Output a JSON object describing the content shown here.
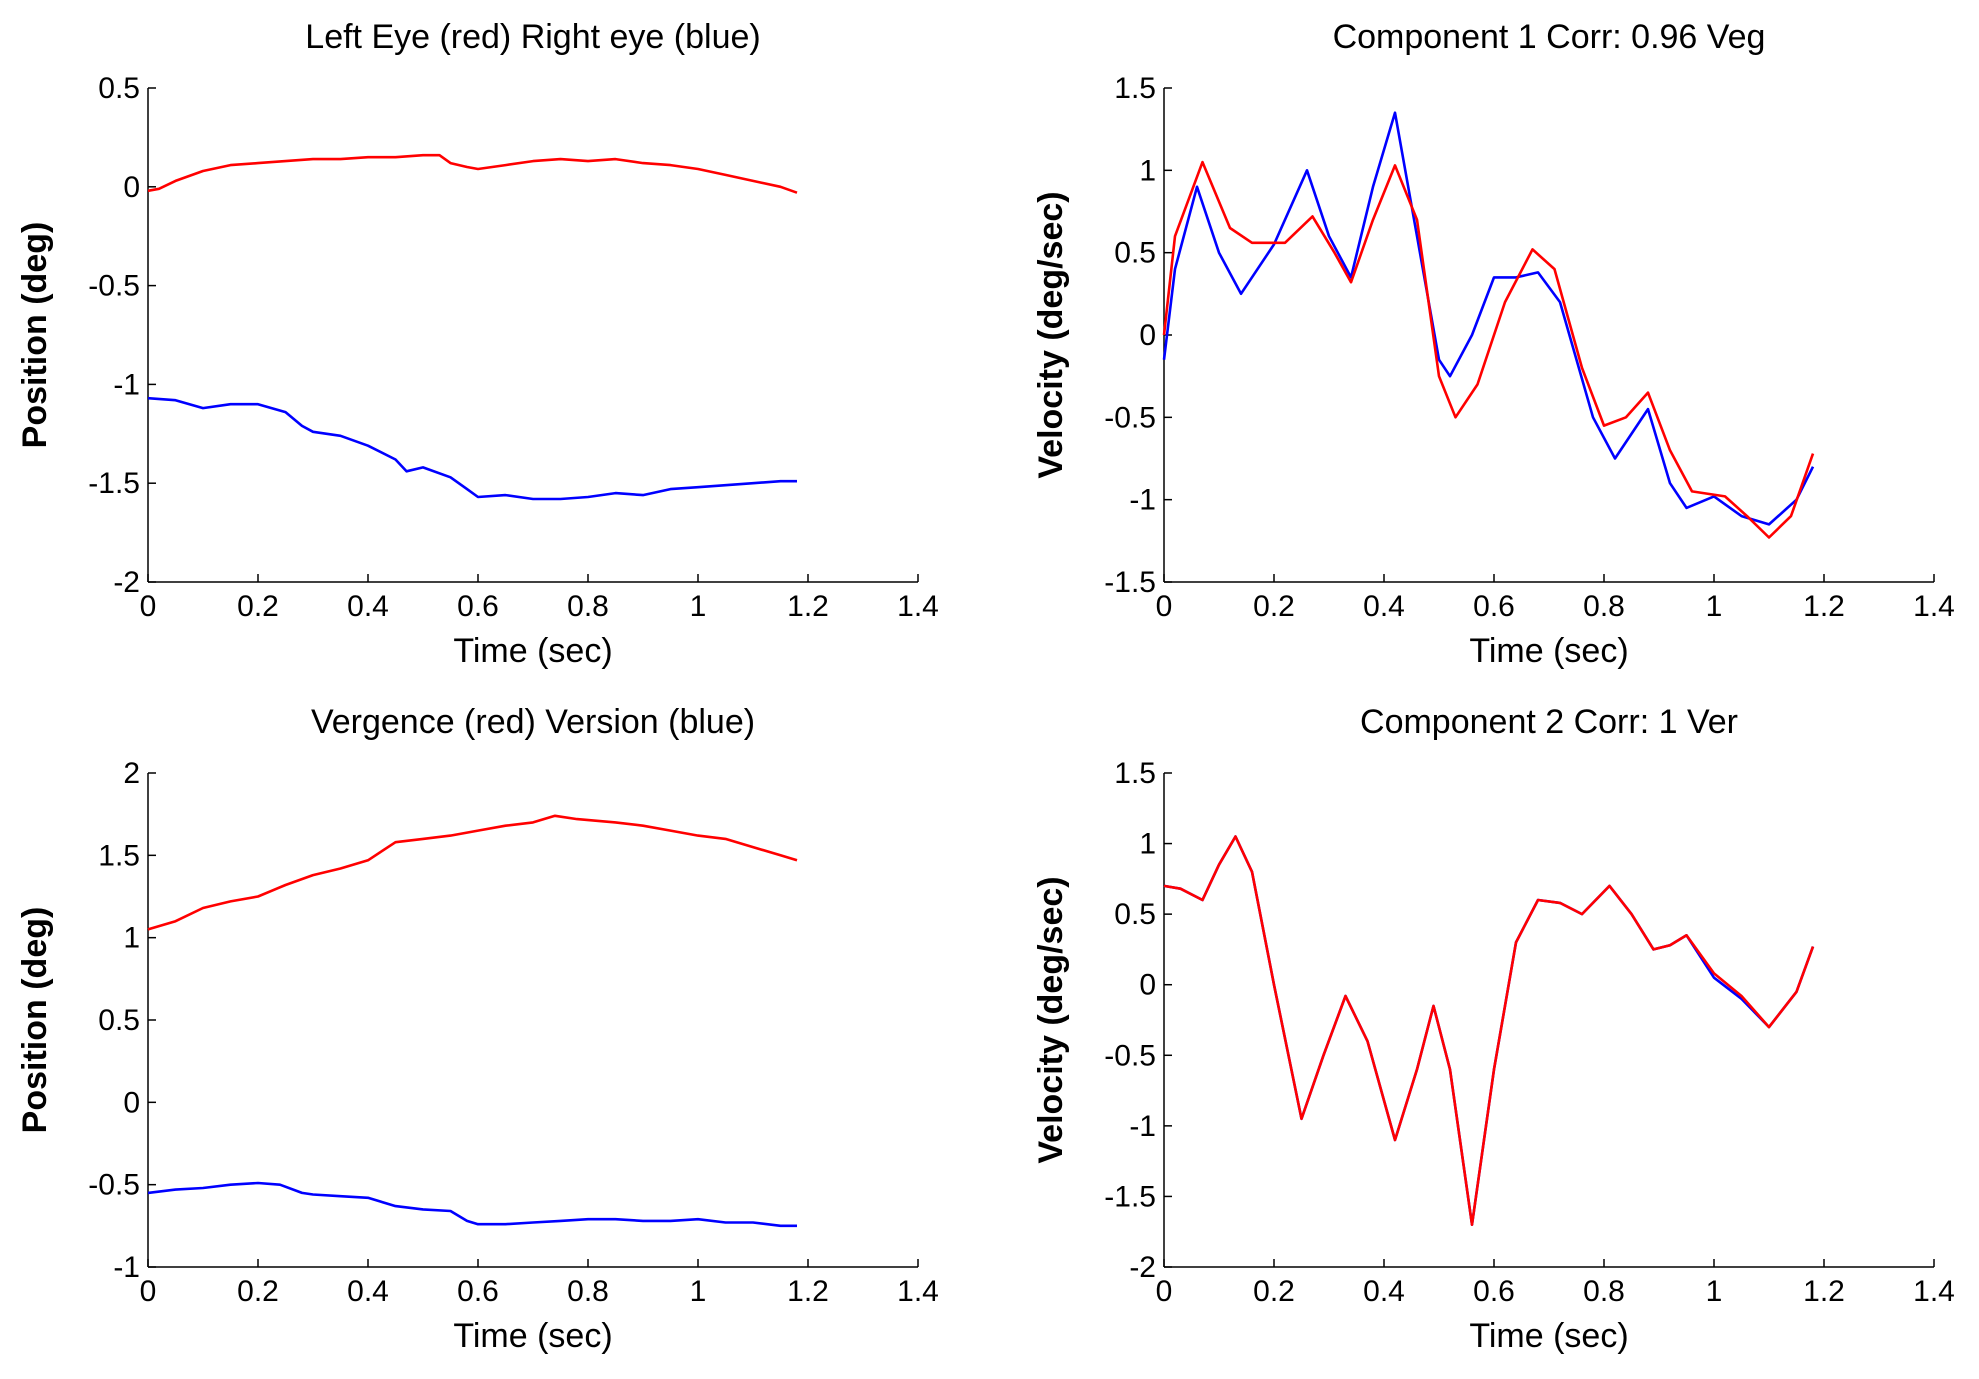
{
  "chart_data": [
    {
      "id": "tl",
      "type": "line",
      "title": "Left Eye (red) Right eye (blue)",
      "xlabel": "Time (sec)",
      "ylabel": "Position (deg)",
      "xlim": [
        0,
        1.4
      ],
      "ylim": [
        -2,
        0.5
      ],
      "xticks": [
        0,
        0.2,
        0.4,
        0.6,
        0.8,
        1,
        1.2,
        1.4
      ],
      "xtick_labels": [
        "0",
        "0.2",
        "0.4",
        "0.6",
        "0.8",
        "1",
        "1.2",
        "1.4"
      ],
      "yticks": [
        0.5,
        0,
        -0.5,
        -1,
        -1.5,
        -2
      ],
      "ytick_labels": [
        "0.5",
        "0",
        "-0.5",
        "-1",
        "-1.5",
        "-2"
      ],
      "series": [
        {
          "name": "Left Eye",
          "color": "#ff0000",
          "x": [
            0,
            0.02,
            0.05,
            0.1,
            0.15,
            0.2,
            0.25,
            0.3,
            0.35,
            0.4,
            0.45,
            0.5,
            0.53,
            0.55,
            0.58,
            0.6,
            0.65,
            0.7,
            0.75,
            0.8,
            0.85,
            0.9,
            0.95,
            1.0,
            1.05,
            1.1,
            1.15,
            1.18
          ],
          "y": [
            -0.02,
            -0.01,
            0.03,
            0.08,
            0.11,
            0.12,
            0.13,
            0.14,
            0.14,
            0.15,
            0.15,
            0.16,
            0.16,
            0.12,
            0.1,
            0.09,
            0.11,
            0.13,
            0.14,
            0.13,
            0.14,
            0.12,
            0.11,
            0.09,
            0.06,
            0.03,
            0.0,
            -0.03
          ]
        },
        {
          "name": "Right eye",
          "color": "#0000ff",
          "x": [
            0,
            0.05,
            0.1,
            0.15,
            0.2,
            0.25,
            0.28,
            0.3,
            0.35,
            0.4,
            0.45,
            0.47,
            0.5,
            0.55,
            0.58,
            0.6,
            0.65,
            0.7,
            0.75,
            0.8,
            0.85,
            0.9,
            0.95,
            1.0,
            1.05,
            1.1,
            1.15,
            1.18
          ],
          "y": [
            -1.07,
            -1.08,
            -1.12,
            -1.1,
            -1.1,
            -1.14,
            -1.21,
            -1.24,
            -1.26,
            -1.31,
            -1.38,
            -1.44,
            -1.42,
            -1.47,
            -1.53,
            -1.57,
            -1.56,
            -1.58,
            -1.58,
            -1.57,
            -1.55,
            -1.56,
            -1.53,
            -1.52,
            -1.51,
            -1.5,
            -1.49,
            -1.49
          ]
        }
      ]
    },
    {
      "id": "tr",
      "type": "line",
      "title": "Component 1 Corr: 0.96 Veg",
      "xlabel": "Time (sec)",
      "ylabel": "Velocity (deg/sec)",
      "xlim": [
        0,
        1.4
      ],
      "ylim": [
        -1.5,
        1.5
      ],
      "xticks": [
        0,
        0.2,
        0.4,
        0.6,
        0.8,
        1,
        1.2,
        1.4
      ],
      "xtick_labels": [
        "0",
        "0.2",
        "0.4",
        "0.6",
        "0.8",
        "1",
        "1.2",
        "1.4"
      ],
      "yticks": [
        1.5,
        1,
        0.5,
        0,
        -0.5,
        -1,
        -1.5
      ],
      "ytick_labels": [
        "1.5",
        "1",
        "0.5",
        "0",
        "-0.5",
        "-1",
        "-1.5"
      ],
      "series": [
        {
          "name": "blue",
          "color": "#0000ff",
          "x": [
            0,
            0.02,
            0.06,
            0.1,
            0.14,
            0.2,
            0.26,
            0.3,
            0.34,
            0.38,
            0.42,
            0.46,
            0.5,
            0.52,
            0.56,
            0.6,
            0.64,
            0.68,
            0.72,
            0.78,
            0.82,
            0.88,
            0.92,
            0.95,
            1.0,
            1.05,
            1.1,
            1.15,
            1.18
          ],
          "y": [
            -0.15,
            0.4,
            0.9,
            0.5,
            0.25,
            0.55,
            1.0,
            0.6,
            0.35,
            0.9,
            1.35,
            0.6,
            -0.15,
            -0.25,
            0.0,
            0.35,
            0.35,
            0.38,
            0.2,
            -0.5,
            -0.75,
            -0.45,
            -0.9,
            -1.05,
            -0.98,
            -1.1,
            -1.15,
            -1.0,
            -0.8
          ]
        },
        {
          "name": "red",
          "color": "#ff0000",
          "x": [
            0,
            0.02,
            0.07,
            0.12,
            0.16,
            0.22,
            0.27,
            0.31,
            0.34,
            0.38,
            0.42,
            0.46,
            0.5,
            0.53,
            0.57,
            0.62,
            0.67,
            0.71,
            0.76,
            0.8,
            0.84,
            0.88,
            0.92,
            0.96,
            1.02,
            1.06,
            1.1,
            1.14,
            1.18
          ],
          "y": [
            0.0,
            0.6,
            1.05,
            0.65,
            0.56,
            0.56,
            0.72,
            0.5,
            0.32,
            0.7,
            1.03,
            0.7,
            -0.25,
            -0.5,
            -0.3,
            0.2,
            0.52,
            0.4,
            -0.2,
            -0.55,
            -0.5,
            -0.35,
            -0.7,
            -0.95,
            -0.98,
            -1.1,
            -1.23,
            -1.1,
            -0.72
          ]
        }
      ]
    },
    {
      "id": "bl",
      "type": "line",
      "title": "Vergence (red) Version (blue)",
      "xlabel": "Time (sec)",
      "ylabel": "Position (deg)",
      "xlim": [
        0,
        1.4
      ],
      "ylim": [
        -1,
        2
      ],
      "xticks": [
        0,
        0.2,
        0.4,
        0.6,
        0.8,
        1,
        1.2,
        1.4
      ],
      "xtick_labels": [
        "0",
        "0.2",
        "0.4",
        "0.6",
        "0.8",
        "1",
        "1.2",
        "1.4"
      ],
      "yticks": [
        2,
        1.5,
        1,
        0.5,
        0,
        -0.5,
        -1
      ],
      "ytick_labels": [
        "2",
        "1.5",
        "1",
        "0.5",
        "0",
        "-0.5",
        "-1"
      ],
      "series": [
        {
          "name": "Vergence",
          "color": "#ff0000",
          "x": [
            0,
            0.05,
            0.1,
            0.15,
            0.2,
            0.25,
            0.3,
            0.35,
            0.4,
            0.45,
            0.5,
            0.55,
            0.6,
            0.65,
            0.7,
            0.74,
            0.78,
            0.85,
            0.9,
            0.95,
            1.0,
            1.05,
            1.1,
            1.15,
            1.18
          ],
          "y": [
            1.05,
            1.1,
            1.18,
            1.22,
            1.25,
            1.32,
            1.38,
            1.42,
            1.47,
            1.58,
            1.6,
            1.62,
            1.65,
            1.68,
            1.7,
            1.74,
            1.72,
            1.7,
            1.68,
            1.65,
            1.62,
            1.6,
            1.55,
            1.5,
            1.47
          ]
        },
        {
          "name": "Version",
          "color": "#0000ff",
          "x": [
            0,
            0.05,
            0.1,
            0.15,
            0.2,
            0.24,
            0.28,
            0.3,
            0.35,
            0.4,
            0.45,
            0.5,
            0.55,
            0.58,
            0.6,
            0.65,
            0.7,
            0.75,
            0.8,
            0.85,
            0.9,
            0.95,
            1.0,
            1.05,
            1.1,
            1.15,
            1.18
          ],
          "y": [
            -0.55,
            -0.53,
            -0.52,
            -0.5,
            -0.49,
            -0.5,
            -0.55,
            -0.56,
            -0.57,
            -0.58,
            -0.63,
            -0.65,
            -0.66,
            -0.72,
            -0.74,
            -0.74,
            -0.73,
            -0.72,
            -0.71,
            -0.71,
            -0.72,
            -0.72,
            -0.71,
            -0.73,
            -0.73,
            -0.75,
            -0.75
          ]
        }
      ]
    },
    {
      "id": "br",
      "type": "line",
      "title": "Component 2 Corr: 1 Ver",
      "xlabel": "Time (sec)",
      "ylabel": "Velocity (deg/sec)",
      "xlim": [
        0,
        1.4
      ],
      "ylim": [
        -2,
        1.5
      ],
      "xticks": [
        0,
        0.2,
        0.4,
        0.6,
        0.8,
        1,
        1.2,
        1.4
      ],
      "xtick_labels": [
        "0",
        "0.2",
        "0.4",
        "0.6",
        "0.8",
        "1",
        "1.2",
        "1.4"
      ],
      "yticks": [
        1.5,
        1,
        0.5,
        0,
        -0.5,
        -1,
        -1.5,
        -2
      ],
      "ytick_labels": [
        "1.5",
        "1",
        "0.5",
        "0",
        "-0.5",
        "-1",
        "-1.5",
        "-2"
      ],
      "series": [
        {
          "name": "blue",
          "color": "#0000ff",
          "x": [
            0,
            0.03,
            0.07,
            0.1,
            0.13,
            0.16,
            0.2,
            0.25,
            0.29,
            0.33,
            0.37,
            0.42,
            0.46,
            0.49,
            0.52,
            0.56,
            0.6,
            0.64,
            0.68,
            0.72,
            0.76,
            0.81,
            0.85,
            0.89,
            0.92,
            0.95,
            1.0,
            1.05,
            1.1,
            1.15,
            1.18
          ],
          "y": [
            0.7,
            0.68,
            0.6,
            0.85,
            1.05,
            0.8,
            0.0,
            -0.95,
            -0.5,
            -0.08,
            -0.4,
            -1.1,
            -0.6,
            -0.15,
            -0.6,
            -1.7,
            -0.6,
            0.3,
            0.6,
            0.58,
            0.5,
            0.7,
            0.5,
            0.25,
            0.28,
            0.35,
            0.05,
            -0.1,
            -0.3,
            -0.05,
            0.27
          ]
        },
        {
          "name": "red",
          "color": "#ff0000",
          "x": [
            0,
            0.03,
            0.07,
            0.1,
            0.13,
            0.16,
            0.2,
            0.25,
            0.29,
            0.33,
            0.37,
            0.42,
            0.46,
            0.49,
            0.52,
            0.56,
            0.6,
            0.64,
            0.68,
            0.72,
            0.76,
            0.81,
            0.85,
            0.89,
            0.92,
            0.95,
            1.0,
            1.05,
            1.1,
            1.15,
            1.18
          ],
          "y": [
            0.7,
            0.68,
            0.6,
            0.85,
            1.05,
            0.8,
            0.0,
            -0.95,
            -0.5,
            -0.08,
            -0.4,
            -1.1,
            -0.6,
            -0.15,
            -0.6,
            -1.7,
            -0.6,
            0.3,
            0.6,
            0.58,
            0.5,
            0.7,
            0.5,
            0.25,
            0.28,
            0.35,
            0.08,
            -0.08,
            -0.3,
            -0.05,
            0.27
          ]
        }
      ]
    }
  ]
}
